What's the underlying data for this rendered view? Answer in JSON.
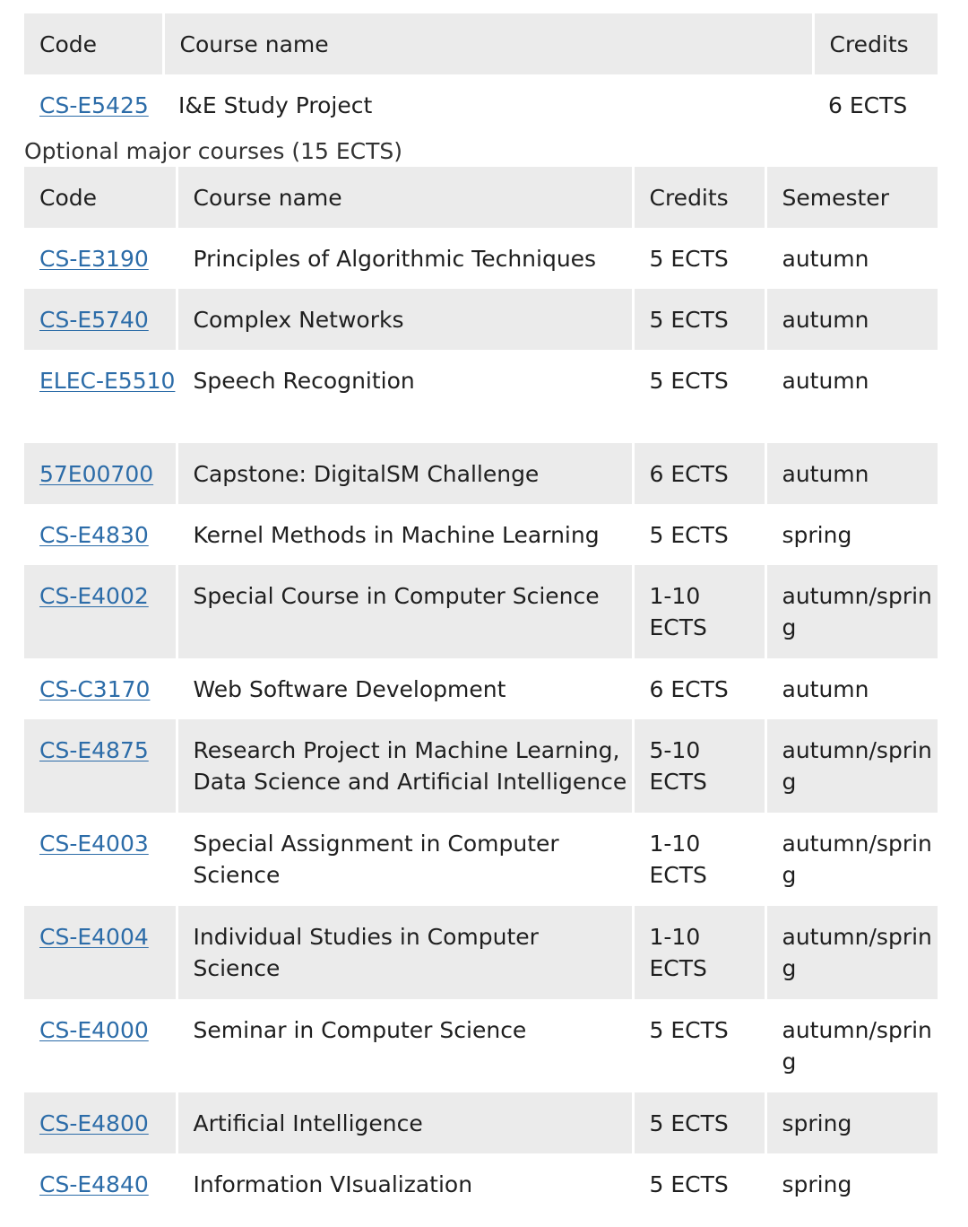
{
  "required_table": {
    "headers": {
      "code": "Code",
      "name": "Course name",
      "credits": "Credits"
    },
    "rows": [
      {
        "code": "CS-E5425",
        "name": "I&E Study Project",
        "credits": "6 ECTS"
      }
    ]
  },
  "optional_caption": "Optional major courses (15 ECTS)",
  "optional_table": {
    "headers": {
      "code": "Code",
      "name": "Course name",
      "credits": "Credits",
      "semester": "Semester"
    },
    "rows": [
      {
        "code": "CS-E3190",
        "name": "Principles of Algorithmic Techniques",
        "credits": "5 ECTS",
        "semester": "autumn"
      },
      {
        "code": "CS-E5740",
        "name": "Complex Networks",
        "credits": "5 ECTS",
        "semester": "autumn"
      },
      {
        "code": "ELEC-E5510",
        "name": "Speech Recognition",
        "credits": "5 ECTS",
        "semester": "autumn"
      },
      {
        "code": "57E00700",
        "name": "Capstone: DigitalSM Challenge",
        "credits": "6 ECTS",
        "semester": "autumn"
      },
      {
        "code": "CS-E4830",
        "name": "Kernel Methods in Machine Learning",
        "credits": "5 ECTS",
        "semester": "spring"
      },
      {
        "code": "CS-E4002",
        "name": "Special Course in Computer Science",
        "credits": "1-10 ECTS",
        "semester": "autumn/spring"
      },
      {
        "code": "CS-C3170",
        "name": "Web Software Development",
        "credits": "6 ECTS",
        "semester": "autumn"
      },
      {
        "code": "CS-E4875",
        "name": "Research Project in Machine Learning, Data Science and Artificial Intelligence",
        "credits": "5-10 ECTS",
        "semester": "autumn/spring"
      },
      {
        "code": "CS-E4003",
        "name": "Special Assignment in Computer Science",
        "credits": "1-10 ECTS",
        "semester": "autumn/spring"
      },
      {
        "code": "CS-E4004",
        "name": "Individual Studies in Computer Science",
        "credits": "1-10 ECTS",
        "semester": "autumn/spring"
      },
      {
        "code": "CS-E4000",
        "name": "Seminar in Computer Science",
        "credits": "5 ECTS",
        "semester": "autumn/spring"
      },
      {
        "code": "CS-E4800",
        "name": "Artificial Intelligence",
        "credits": "5 ECTS",
        "semester": "spring"
      },
      {
        "code": "CS-E4840",
        "name": "Information VIsualization",
        "credits": "5 ECTS",
        "semester": "spring"
      }
    ]
  }
}
